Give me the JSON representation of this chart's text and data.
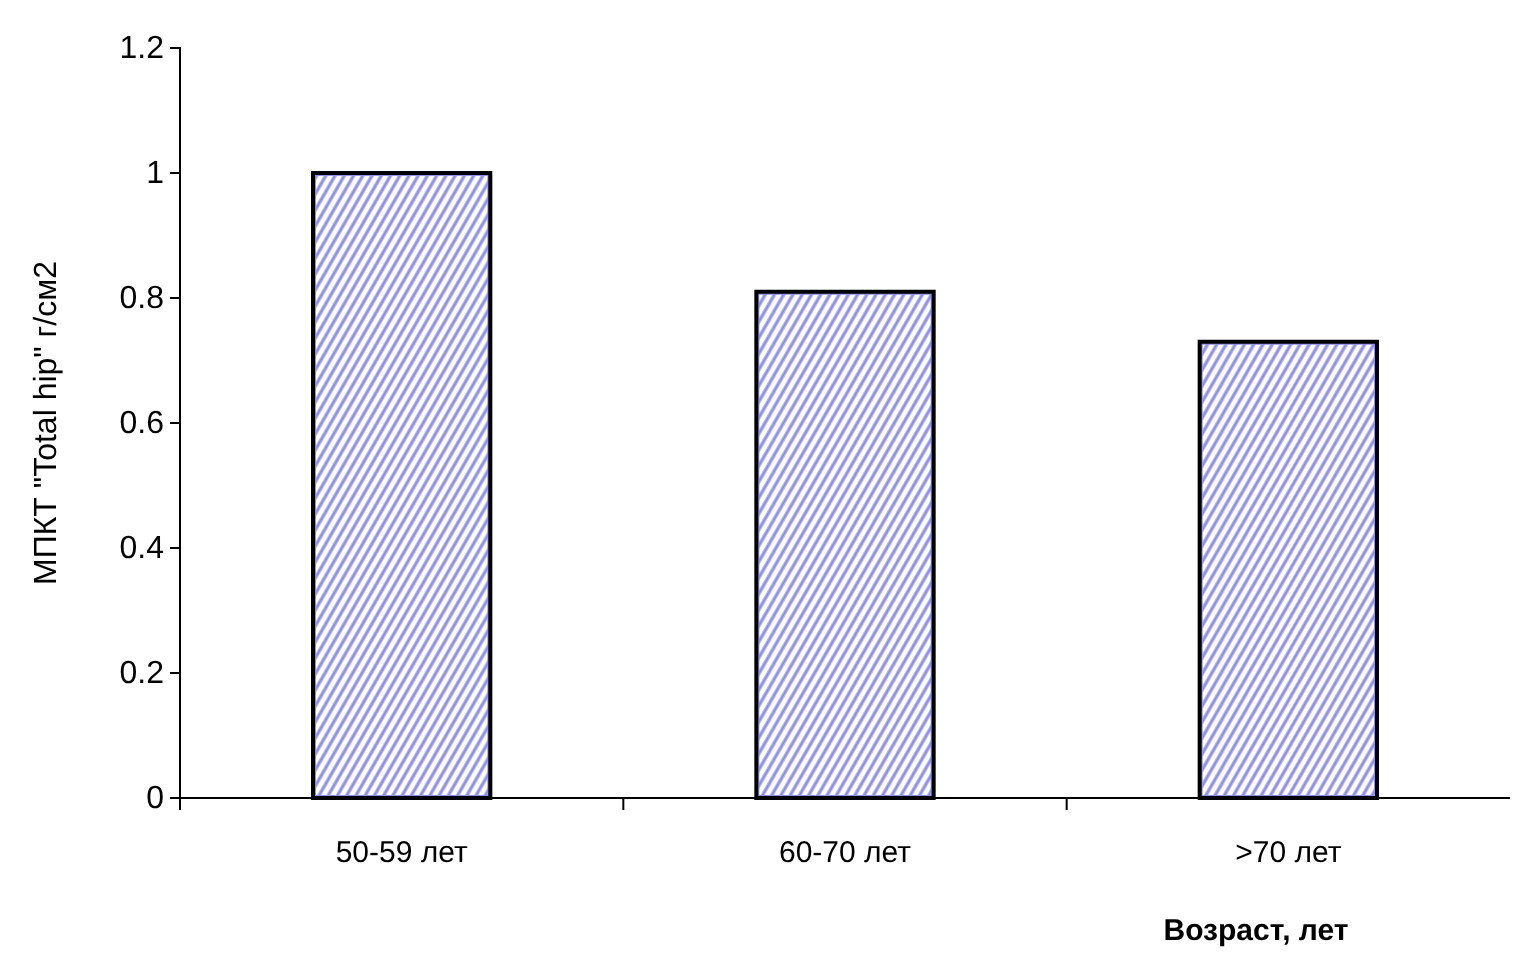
{
  "chart_data": {
    "type": "bar",
    "categories": [
      "50-59 лет",
      "60-70 лет",
      ">70 лет"
    ],
    "values": [
      1.0,
      0.81,
      0.73
    ],
    "color": "#8f8fe8",
    "ylabel": "МПКТ \"Total hip\" г/см2",
    "xlabel": "Возраст, лет",
    "ylim": [
      0,
      1.2
    ],
    "yticks": [
      0,
      0.2,
      0.4,
      0.6,
      0.8,
      1,
      1.2
    ],
    "grid": false
  }
}
